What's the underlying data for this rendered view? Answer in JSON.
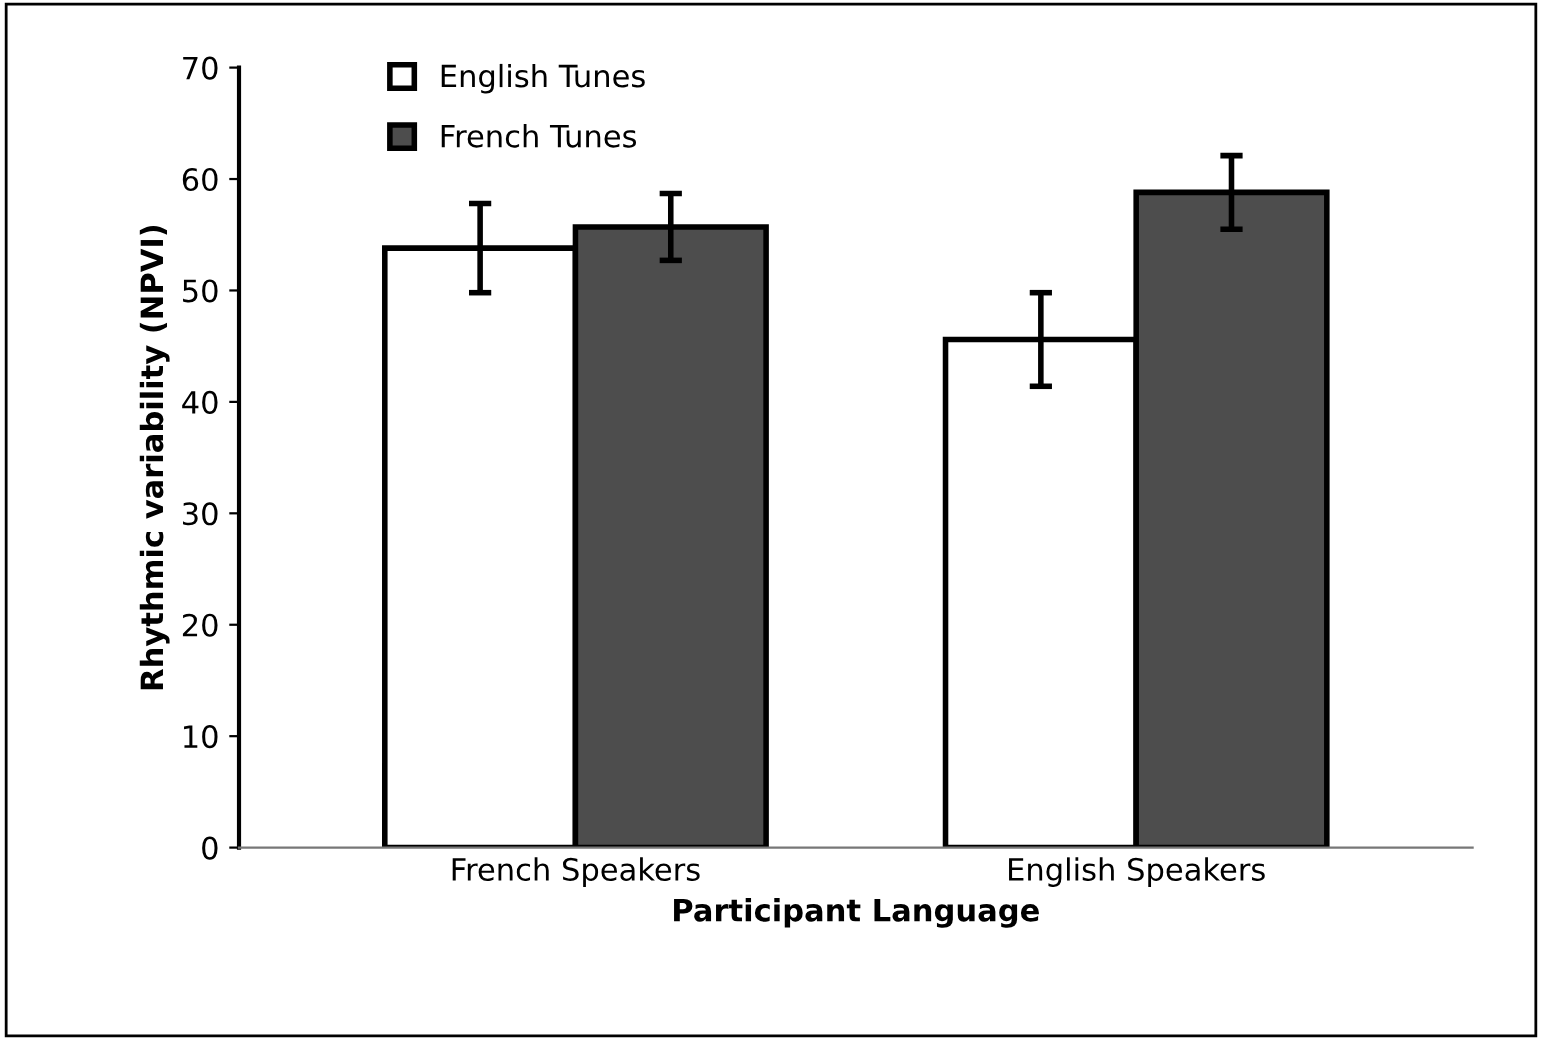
{
  "chart_data": {
    "type": "bar",
    "xlabel": "Participant Language",
    "ylabel": "Rhythmic variability (NPVI)",
    "categories": [
      "French Speakers",
      "English Speakers"
    ],
    "series": [
      {
        "name": "English Tunes",
        "color": "#ffffff",
        "values": [
          53.8,
          45.6
        ],
        "errors": [
          4,
          4.2
        ]
      },
      {
        "name": "French Tunes",
        "color": "#4d4d4d",
        "values": [
          55.7,
          58.8
        ],
        "errors": [
          3,
          3.3
        ]
      }
    ],
    "ylim": [
      0,
      70
    ],
    "yticks": [
      0,
      10,
      20,
      30,
      40,
      50,
      60,
      70
    ],
    "grid": false,
    "legend": "top left"
  }
}
